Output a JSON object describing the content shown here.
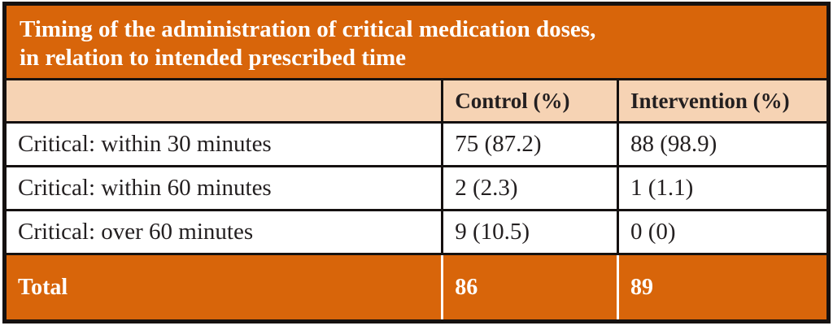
{
  "title": {
    "line1": "Timing of the administration of critical medication doses,",
    "line2": "in relation to intended prescribed time"
  },
  "table": {
    "columns": [
      "",
      "Control (%)",
      "Intervention (%)"
    ],
    "rows": [
      {
        "label": "Critical: within 30 minutes",
        "control": "75 (87.2)",
        "intervention": "88 (98.9)"
      },
      {
        "label": "Critical: within 60 minutes",
        "control": "2 (2.3)",
        "intervention": "1 (1.1)"
      },
      {
        "label": "Critical: over 60 minutes",
        "control": "9 (10.5)",
        "intervention": "0 (0)"
      }
    ],
    "total": {
      "label": "Total",
      "control": "86",
      "intervention": "89"
    }
  },
  "colors": {
    "accent_orange": "#d8650a",
    "header_peach": "#f6d3b4",
    "border_black": "#151110",
    "text_dark": "#231f20",
    "text_light": "#ffffff"
  },
  "chart_data": {
    "type": "table",
    "title": "Timing of the administration of critical medication doses, in relation to intended prescribed time",
    "columns": [
      "",
      "Control (%)",
      "Intervention (%)"
    ],
    "rows": [
      [
        "Critical: within 30 minutes",
        "75 (87.2)",
        "88 (98.9)"
      ],
      [
        "Critical: within 60 minutes",
        "2 (2.3)",
        "1 (1.1)"
      ],
      [
        "Critical: over 60 minutes",
        "9 (10.5)",
        "0 (0)"
      ],
      [
        "Total",
        "86",
        "89"
      ]
    ]
  }
}
